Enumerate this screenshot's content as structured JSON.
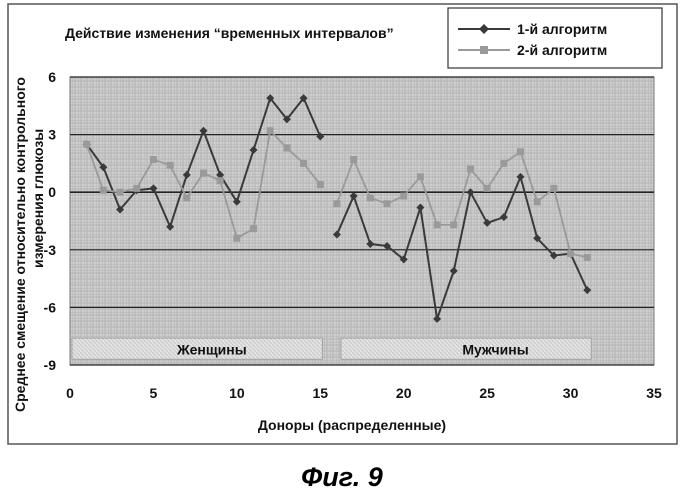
{
  "chart_data": {
    "type": "line",
    "title": "Действие изменения “временных интервалов”",
    "xlabel": "Доноры (распределенные)",
    "ylabel_line1": "Среднее смещение относительно контрольного",
    "ylabel_line2": "измерения глюкозы",
    "xlim": [
      0,
      35
    ],
    "ylim": [
      -9,
      6
    ],
    "xticks": [
      0,
      5,
      10,
      15,
      20,
      25,
      30,
      35
    ],
    "yticks": [
      6,
      3,
      0,
      -3,
      -6,
      -9
    ],
    "legend_position": "top-right",
    "series": [
      {
        "name": "1-й алгоритм",
        "color": "#3a3a3a",
        "segments": [
          {
            "x": [
              1,
              2,
              3,
              4,
              5,
              6,
              7,
              8,
              9,
              10,
              11,
              12,
              13,
              14,
              15
            ],
            "y": [
              2.5,
              1.3,
              -0.9,
              0.1,
              0.2,
              -1.8,
              0.9,
              3.2,
              0.9,
              -0.5,
              2.2,
              4.9,
              3.8,
              4.9,
              2.9
            ]
          },
          {
            "x": [
              16,
              17,
              18,
              19,
              20,
              21,
              22,
              23,
              24,
              25,
              26,
              27,
              28,
              29,
              30,
              31
            ],
            "y": [
              -2.2,
              -0.2,
              -2.7,
              -2.8,
              -3.5,
              -0.8,
              -6.6,
              -4.1,
              0.0,
              -1.6,
              -1.3,
              0.8,
              -2.4,
              -3.3,
              -3.2,
              -5.1
            ]
          }
        ]
      },
      {
        "name": "2-й алгоритм",
        "color": "#9a9a9a",
        "segments": [
          {
            "x": [
              1,
              2,
              3,
              4,
              5,
              6,
              7,
              8,
              9,
              10,
              11,
              12,
              13,
              14,
              15
            ],
            "y": [
              2.5,
              0.1,
              0.0,
              0.2,
              1.7,
              1.4,
              -0.3,
              1.0,
              0.6,
              -2.4,
              -1.9,
              3.2,
              2.3,
              1.5,
              0.4
            ]
          },
          {
            "x": [
              16,
              17,
              18,
              19,
              20,
              21,
              22,
              23,
              24,
              25,
              26,
              27,
              28,
              29,
              30,
              31
            ],
            "y": [
              -0.6,
              1.7,
              -0.3,
              -0.6,
              -0.2,
              0.8,
              -1.7,
              -1.7,
              1.2,
              0.2,
              1.5,
              2.1,
              -0.5,
              0.2,
              -3.2,
              -3.4
            ]
          }
        ]
      }
    ],
    "annotations": [
      {
        "text": "Женщины",
        "x": 8.5,
        "y": -8.2,
        "x_range": [
          0,
          15
        ]
      },
      {
        "text": "Мужчины",
        "x": 25.5,
        "y": -8.2,
        "x_range": [
          16,
          31
        ]
      }
    ]
  },
  "figure_caption": "Фиг. 9"
}
